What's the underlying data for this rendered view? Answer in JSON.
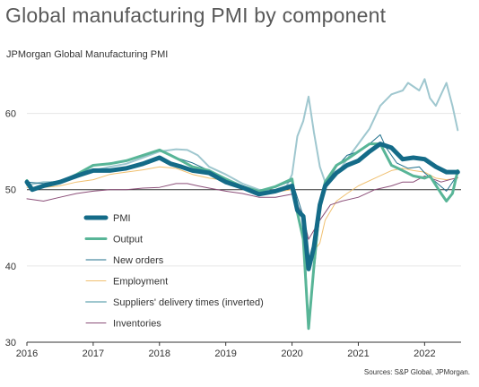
{
  "title": "Global manufacturing PMI by component",
  "subtitle": "JPMorgan Global Manufacturing PMI",
  "source": "Sources: S&P Global, JPMorgan.",
  "chart_data": {
    "type": "line",
    "ylim": [
      30,
      65
    ],
    "yticks": [
      "30",
      "40",
      "50",
      "60"
    ],
    "xlim": [
      2016.0,
      2022.55
    ],
    "xticks": [
      "2016",
      "2017",
      "2018",
      "2019",
      "2020",
      "2021",
      "2022"
    ],
    "reference_line": 50,
    "legend_placement": "lower-left",
    "series": [
      {
        "name": "Suppliers' delivery times (inverted)",
        "color": "#9fc7cf",
        "width": 2,
        "points": [
          [
            2016.0,
            50.6
          ],
          [
            2016.25,
            51.0
          ],
          [
            2016.5,
            51.0
          ],
          [
            2016.75,
            51.6
          ],
          [
            2017.0,
            52.5
          ],
          [
            2017.25,
            53.0
          ],
          [
            2017.5,
            53.4
          ],
          [
            2017.75,
            54.2
          ],
          [
            2018.0,
            55.0
          ],
          [
            2018.25,
            55.3
          ],
          [
            2018.42,
            55.2
          ],
          [
            2018.58,
            54.5
          ],
          [
            2018.75,
            53.0
          ],
          [
            2019.0,
            52.0
          ],
          [
            2019.25,
            50.8
          ],
          [
            2019.5,
            50.0
          ],
          [
            2019.75,
            49.8
          ],
          [
            2019.92,
            50.5
          ],
          [
            2020.0,
            52.0
          ],
          [
            2020.08,
            57.0
          ],
          [
            2020.17,
            59.0
          ],
          [
            2020.25,
            62.2
          ],
          [
            2020.33,
            57.5
          ],
          [
            2020.42,
            53.0
          ],
          [
            2020.5,
            51.0
          ],
          [
            2020.67,
            52.0
          ],
          [
            2020.83,
            54.0
          ],
          [
            2021.0,
            56.0
          ],
          [
            2021.17,
            58.0
          ],
          [
            2021.33,
            61.0
          ],
          [
            2021.5,
            62.5
          ],
          [
            2021.67,
            63.0
          ],
          [
            2021.75,
            64.0
          ],
          [
            2021.92,
            63.0
          ],
          [
            2022.0,
            64.5
          ],
          [
            2022.08,
            62.0
          ],
          [
            2022.17,
            61.0
          ],
          [
            2022.33,
            64.0
          ],
          [
            2022.42,
            61.0
          ],
          [
            2022.5,
            57.8
          ]
        ]
      },
      {
        "name": "Employment",
        "color": "#f0c070",
        "width": 1,
        "points": [
          [
            2016.0,
            50.3
          ],
          [
            2016.25,
            50.3
          ],
          [
            2016.5,
            50.5
          ],
          [
            2016.75,
            51.0
          ],
          [
            2017.0,
            51.3
          ],
          [
            2017.25,
            52.0
          ],
          [
            2017.5,
            52.3
          ],
          [
            2017.75,
            52.6
          ],
          [
            2018.0,
            53.0
          ],
          [
            2018.25,
            52.8
          ],
          [
            2018.5,
            52.0
          ],
          [
            2018.75,
            51.5
          ],
          [
            2019.0,
            51.2
          ],
          [
            2019.25,
            50.5
          ],
          [
            2019.5,
            49.8
          ],
          [
            2019.75,
            49.7
          ],
          [
            2020.0,
            50.0
          ],
          [
            2020.17,
            46.0
          ],
          [
            2020.25,
            41.0
          ],
          [
            2020.42,
            43.0
          ],
          [
            2020.5,
            46.0
          ],
          [
            2020.67,
            48.5
          ],
          [
            2020.83,
            49.5
          ],
          [
            2021.0,
            50.5
          ],
          [
            2021.25,
            51.5
          ],
          [
            2021.5,
            52.5
          ],
          [
            2021.67,
            52.8
          ],
          [
            2021.83,
            52.5
          ],
          [
            2022.0,
            52.3
          ],
          [
            2022.17,
            51.5
          ],
          [
            2022.33,
            51.3
          ],
          [
            2022.5,
            51.5
          ]
        ]
      },
      {
        "name": "Inventories",
        "color": "#8b4e78",
        "width": 1,
        "points": [
          [
            2016.0,
            48.8
          ],
          [
            2016.25,
            48.5
          ],
          [
            2016.5,
            49.0
          ],
          [
            2016.75,
            49.5
          ],
          [
            2017.0,
            49.8
          ],
          [
            2017.25,
            50.0
          ],
          [
            2017.5,
            50.0
          ],
          [
            2017.75,
            50.2
          ],
          [
            2018.0,
            50.3
          ],
          [
            2018.25,
            50.8
          ],
          [
            2018.42,
            50.8
          ],
          [
            2018.58,
            50.5
          ],
          [
            2018.75,
            50.2
          ],
          [
            2019.0,
            49.8
          ],
          [
            2019.25,
            49.5
          ],
          [
            2019.5,
            49.0
          ],
          [
            2019.75,
            49.0
          ],
          [
            2020.0,
            49.4
          ],
          [
            2020.17,
            46.5
          ],
          [
            2020.25,
            43.5
          ],
          [
            2020.42,
            46.0
          ],
          [
            2020.58,
            48.0
          ],
          [
            2020.75,
            48.5
          ],
          [
            2021.0,
            49.0
          ],
          [
            2021.25,
            50.0
          ],
          [
            2021.5,
            50.5
          ],
          [
            2021.67,
            51.0
          ],
          [
            2021.83,
            51.0
          ],
          [
            2022.0,
            51.8
          ],
          [
            2022.25,
            51.0
          ],
          [
            2022.5,
            51.6
          ]
        ]
      },
      {
        "name": "New orders",
        "color": "#1f6f8b",
        "width": 1,
        "points": [
          [
            2016.0,
            51.0
          ],
          [
            2016.25,
            50.8
          ],
          [
            2016.5,
            51.2
          ],
          [
            2016.75,
            52.0
          ],
          [
            2017.0,
            53.2
          ],
          [
            2017.25,
            53.5
          ],
          [
            2017.5,
            53.7
          ],
          [
            2017.75,
            54.4
          ],
          [
            2018.0,
            55.2
          ],
          [
            2018.25,
            54.2
          ],
          [
            2018.5,
            53.5
          ],
          [
            2018.75,
            52.5
          ],
          [
            2019.0,
            51.5
          ],
          [
            2019.25,
            50.5
          ],
          [
            2019.5,
            49.7
          ],
          [
            2019.75,
            50.3
          ],
          [
            2020.0,
            51.2
          ],
          [
            2020.17,
            46.5
          ],
          [
            2020.25,
            32.5
          ],
          [
            2020.33,
            39.0
          ],
          [
            2020.42,
            47.0
          ],
          [
            2020.5,
            50.5
          ],
          [
            2020.67,
            53.0
          ],
          [
            2020.83,
            54.5
          ],
          [
            2021.0,
            55.0
          ],
          [
            2021.17,
            56.0
          ],
          [
            2021.33,
            57.2
          ],
          [
            2021.42,
            55.5
          ],
          [
            2021.58,
            53.5
          ],
          [
            2021.75,
            52.8
          ],
          [
            2021.92,
            53.0
          ],
          [
            2022.0,
            52.2
          ],
          [
            2022.17,
            51.0
          ],
          [
            2022.33,
            49.8
          ],
          [
            2022.5,
            52.0
          ]
        ]
      },
      {
        "name": "Output",
        "color": "#58b597",
        "width": 3,
        "points": [
          [
            2016.0,
            51.2
          ],
          [
            2016.08,
            50.0
          ],
          [
            2016.25,
            50.5
          ],
          [
            2016.5,
            51.0
          ],
          [
            2016.75,
            52.0
          ],
          [
            2017.0,
            53.2
          ],
          [
            2017.25,
            53.4
          ],
          [
            2017.5,
            53.8
          ],
          [
            2017.75,
            54.5
          ],
          [
            2018.0,
            55.2
          ],
          [
            2018.17,
            54.5
          ],
          [
            2018.33,
            53.8
          ],
          [
            2018.5,
            53.0
          ],
          [
            2018.75,
            52.5
          ],
          [
            2019.0,
            51.4
          ],
          [
            2019.25,
            50.4
          ],
          [
            2019.5,
            49.8
          ],
          [
            2019.75,
            50.4
          ],
          [
            2020.0,
            51.4
          ],
          [
            2020.08,
            47.0
          ],
          [
            2020.17,
            43.5
          ],
          [
            2020.25,
            31.8
          ],
          [
            2020.33,
            40.0
          ],
          [
            2020.42,
            48.0
          ],
          [
            2020.5,
            51.0
          ],
          [
            2020.67,
            53.2
          ],
          [
            2020.83,
            54.0
          ],
          [
            2021.0,
            55.0
          ],
          [
            2021.17,
            56.0
          ],
          [
            2021.33,
            56.0
          ],
          [
            2021.5,
            53.2
          ],
          [
            2021.67,
            52.5
          ],
          [
            2021.83,
            51.8
          ],
          [
            2022.0,
            51.5
          ],
          [
            2022.08,
            51.8
          ],
          [
            2022.25,
            49.5
          ],
          [
            2022.33,
            48.5
          ],
          [
            2022.42,
            49.5
          ],
          [
            2022.5,
            52.5
          ]
        ]
      },
      {
        "name": "PMI",
        "color": "#146b88",
        "width": 5,
        "points": [
          [
            2016.0,
            51.0
          ],
          [
            2016.08,
            50.0
          ],
          [
            2016.25,
            50.5
          ],
          [
            2016.5,
            51.0
          ],
          [
            2016.75,
            51.8
          ],
          [
            2017.0,
            52.5
          ],
          [
            2017.25,
            52.5
          ],
          [
            2017.5,
            52.8
          ],
          [
            2017.75,
            53.4
          ],
          [
            2018.0,
            54.2
          ],
          [
            2018.17,
            53.4
          ],
          [
            2018.33,
            53.0
          ],
          [
            2018.5,
            52.5
          ],
          [
            2018.75,
            52.2
          ],
          [
            2019.0,
            51.0
          ],
          [
            2019.25,
            50.3
          ],
          [
            2019.5,
            49.4
          ],
          [
            2019.75,
            49.8
          ],
          [
            2020.0,
            50.5
          ],
          [
            2020.08,
            47.3
          ],
          [
            2020.17,
            46.5
          ],
          [
            2020.25,
            39.6
          ],
          [
            2020.33,
            42.5
          ],
          [
            2020.42,
            48.0
          ],
          [
            2020.5,
            50.5
          ],
          [
            2020.67,
            52.2
          ],
          [
            2020.83,
            53.2
          ],
          [
            2021.0,
            53.8
          ],
          [
            2021.17,
            55.0
          ],
          [
            2021.33,
            56.0
          ],
          [
            2021.5,
            55.5
          ],
          [
            2021.67,
            54.0
          ],
          [
            2021.83,
            54.2
          ],
          [
            2022.0,
            54.0
          ],
          [
            2022.17,
            53.0
          ],
          [
            2022.33,
            52.3
          ],
          [
            2022.5,
            52.3
          ]
        ]
      }
    ],
    "legend": [
      {
        "label": "PMI",
        "color": "#146b88",
        "width": 5
      },
      {
        "label": "Output",
        "color": "#58b597",
        "width": 3
      },
      {
        "label": "New orders",
        "color": "#1f6f8b",
        "width": 1
      },
      {
        "label": "Employment",
        "color": "#f0c070",
        "width": 1
      },
      {
        "label": "Suppliers' delivery times (inverted)",
        "color": "#9fc7cf",
        "width": 2
      },
      {
        "label": "Inventories",
        "color": "#8b4e78",
        "width": 1
      }
    ]
  }
}
